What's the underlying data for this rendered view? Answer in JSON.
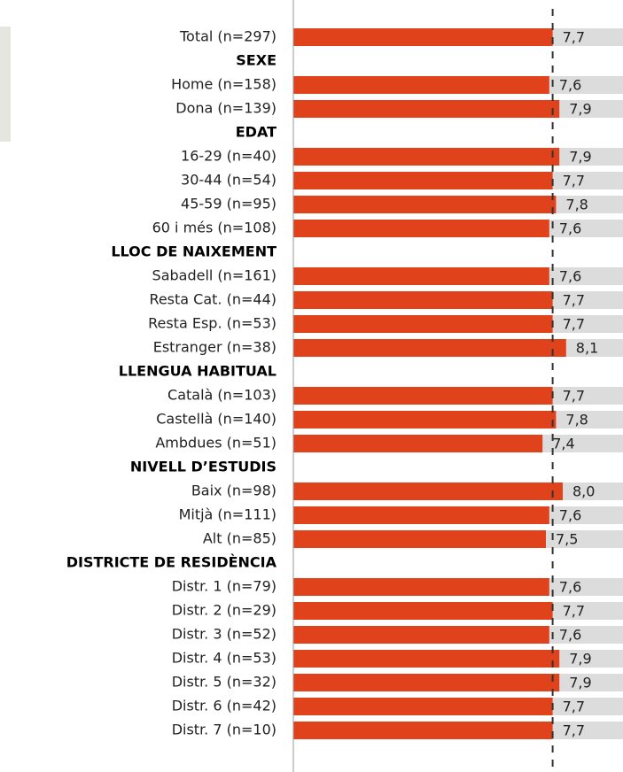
{
  "chart_data": {
    "type": "bar",
    "orientation": "horizontal",
    "categories": [
      "Total (n=297)",
      "SEXE",
      "Home (n=158)",
      "Dona (n=139)",
      "EDAT",
      "16-29 (n=40)",
      "30-44 (n=54)",
      "45-59 (n=95)",
      "60 i més (n=108)",
      "LLOC DE NAIXEMENT",
      "Sabadell (n=161)",
      "Resta Cat. (n=44)",
      "Resta Esp. (n=53)",
      "Estranger (n=38)",
      "LLENGUA HABITUAL",
      "Català (n=103)",
      "Castellà (n=140)",
      "Ambdues (n=51)",
      "NIVELL D’ESTUDIS",
      "Baix (n=98)",
      "Mitjà (n=111)",
      "Alt (n=85)",
      "DISTRICTE DE RESIDÈNCIA",
      "Distr. 1 (n=79)",
      "Distr. 2 (n=29)",
      "Distr. 3 (n=52)",
      "Distr. 4 (n=53)",
      "Distr. 5 (n=32)",
      "Distr. 6 (n=42)",
      "Distr. 7 (n=10)"
    ],
    "values": [
      7.7,
      null,
      7.6,
      7.9,
      null,
      7.9,
      7.7,
      7.8,
      7.6,
      null,
      7.6,
      7.7,
      7.7,
      8.1,
      null,
      7.7,
      7.8,
      7.4,
      null,
      8.0,
      7.6,
      7.5,
      null,
      7.6,
      7.7,
      7.6,
      7.9,
      7.9,
      7.7,
      7.7
    ],
    "value_labels": [
      "7,7",
      null,
      "7,6",
      "7,9",
      null,
      "7,9",
      "7,7",
      "7,8",
      "7,6",
      null,
      "7,6",
      "7,7",
      "7,7",
      "8,1",
      null,
      "7,7",
      "7,8",
      "7,4",
      null,
      "8,0",
      "7,6",
      "7,5",
      null,
      "7,6",
      "7,7",
      "7,6",
      "7,9",
      "7,9",
      "7,7",
      "7,7"
    ],
    "color": "#e0421b",
    "background_color": "#dcdcdc",
    "xlim": [
      0,
      10
    ]
  }
}
